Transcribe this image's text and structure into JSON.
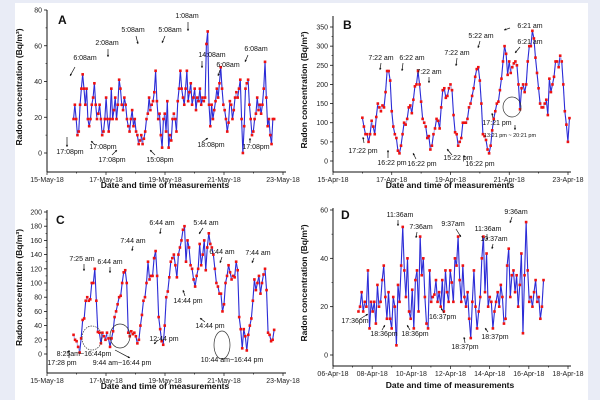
{
  "figure": {
    "background": "#e9ecf6",
    "line_color": "#2b2bd6",
    "line_light_color": "#b7b9f0",
    "marker_color": "#ee1111"
  },
  "chart_data": [
    {
      "panel": "A",
      "type": "line",
      "xlabel": "Date and time of measurements",
      "ylabel": "Radon concentration (Bq/m³)",
      "ylim": [
        -10,
        80
      ],
      "yticks": [
        0,
        20,
        40,
        60,
        80
      ],
      "xlim_days": [
        0,
        8
      ],
      "xticks": [
        {
          "day": 0,
          "label": "15-May-18"
        },
        {
          "day": 2,
          "label": "17-May-18"
        },
        {
          "day": 4,
          "label": "19-May-18"
        },
        {
          "day": 6,
          "label": "21-May-18"
        },
        {
          "day": 8,
          "label": "23-May-18"
        }
      ],
      "x_start_day": 0.9,
      "x_end_day": 7.7,
      "values": [
        19,
        27,
        19,
        10,
        12,
        27,
        36,
        44,
        36,
        27,
        36,
        19,
        15,
        19,
        27,
        31,
        39,
        27,
        19,
        22,
        27,
        19,
        10,
        12,
        19,
        31,
        19,
        12,
        19,
        36,
        19,
        24,
        31,
        19,
        27,
        41,
        36,
        27,
        24,
        31,
        27,
        19,
        15,
        12,
        19,
        24,
        15,
        19,
        12,
        10,
        5,
        7,
        10,
        5,
        8,
        12,
        19,
        22,
        31,
        24,
        27,
        29,
        34,
        46,
        29,
        19,
        22,
        10,
        3,
        19,
        22,
        12,
        29,
        3,
        10,
        7,
        19,
        22,
        19,
        12,
        29,
        36,
        46,
        36,
        31,
        27,
        36,
        46,
        29,
        34,
        39,
        27,
        31,
        36,
        24,
        31,
        29,
        36,
        27,
        31,
        29,
        31,
        61,
        68,
        27,
        15,
        27,
        19,
        24,
        29,
        36,
        31,
        39,
        48,
        36,
        27,
        24,
        19,
        12,
        17,
        29,
        27,
        19,
        24,
        31,
        34,
        31,
        36,
        41,
        19,
        0,
        15,
        36,
        39,
        41,
        27,
        19,
        10,
        12,
        19,
        22,
        31,
        24,
        27,
        22,
        27,
        36,
        51,
        31,
        15,
        19,
        10,
        5,
        19,
        19
      ],
      "annotations": [
        {
          "text": "6:08am",
          "day": 1.5,
          "value": 39,
          "ty": 41
        },
        {
          "text": "2:08am",
          "day": 2.3,
          "value": 41,
          "ty": 45
        },
        {
          "text": "5:08am",
          "day": 3.3,
          "value": 46,
          "ty": 50
        },
        {
          "text": "5:08am",
          "day": 4.3,
          "value": 46,
          "ty": 50
        },
        {
          "text": "1:08am",
          "day": 5.05,
          "value": 68,
          "ty": 72
        },
        {
          "text": "14:08am",
          "day": 5.6,
          "value": 48,
          "ty": 52
        },
        {
          "text": "6:08am",
          "day": 6.25,
          "value": 41,
          "ty": 45
        },
        {
          "text": "6:08am",
          "day": 7.25,
          "value": 51,
          "ty": 55
        },
        {
          "text": "17:08pm",
          "day": 1.0,
          "value": 5,
          "ty": -2
        },
        {
          "text": "17:08pm",
          "day": 1.6,
          "value": 9,
          "ty": 3
        },
        {
          "text": "17:08pm",
          "day": 3.0,
          "value": 5,
          "ty": -3
        },
        {
          "text": "15:08pm",
          "day": 3.9,
          "value": 3,
          "ty": -3
        },
        {
          "text": "18:08pm",
          "day": 5.5,
          "value": 8,
          "ty": 4
        },
        {
          "text": "17:08pm",
          "day": 6.9,
          "value": 9,
          "ty": 3
        }
      ]
    },
    {
      "panel": "B",
      "type": "line",
      "xlabel": "Date and time of measurements",
      "ylabel": "Radon concentration (Bq/m³)",
      "ylim": [
        -20,
        375
      ],
      "yticks": [
        0,
        50,
        100,
        150,
        200,
        250,
        300,
        350
      ],
      "xlim_days": [
        0,
        8
      ],
      "xticks": [
        {
          "day": 0,
          "label": "15-Apr-18"
        },
        {
          "day": 2,
          "label": "17-Apr-18"
        },
        {
          "day": 4,
          "label": "19-Apr-18"
        },
        {
          "day": 6,
          "label": "21-Apr-18"
        },
        {
          "day": 8,
          "label": "23-Apr-18"
        }
      ],
      "x_start_day": 1.0,
      "x_end_day": 8.05,
      "values": [
        113,
        90,
        70,
        70,
        50,
        70,
        105,
        90,
        70,
        115,
        150,
        140,
        130,
        145,
        140,
        180,
        235,
        235,
        210,
        130,
        90,
        70,
        60,
        27,
        20,
        40,
        70,
        100,
        95,
        110,
        140,
        145,
        125,
        160,
        195,
        200,
        235,
        200,
        155,
        110,
        100,
        90,
        60,
        65,
        30,
        40,
        70,
        85,
        110,
        105,
        85,
        140,
        185,
        190,
        165,
        170,
        190,
        200,
        185,
        120,
        75,
        70,
        40,
        50,
        60,
        100,
        100,
        100,
        110,
        140,
        150,
        170,
        190,
        220,
        240,
        245,
        210,
        150,
        70,
        65,
        55,
        30,
        20,
        40,
        80,
        110,
        130,
        150,
        155,
        185,
        215,
        260,
        300,
        280,
        225,
        260,
        230,
        245,
        255,
        260,
        250,
        200,
        135,
        190,
        200,
        180,
        200,
        260,
        300,
        300,
        340,
        320,
        270,
        230,
        190,
        150,
        140,
        140,
        150,
        160,
        120,
        215,
        180,
        200,
        220,
        260,
        260,
        245,
        275,
        260,
        200,
        130,
        95,
        50,
        112
      ]
    },
    {
      "panel": "C",
      "type": "line",
      "xlabel": "Date and time of measurements",
      "ylabel": "Radon concentration (Bq/m³)",
      "ylim": [
        -10,
        200
      ],
      "yticks": [
        0,
        20,
        40,
        60,
        80,
        100,
        120,
        140,
        160,
        180,
        200
      ],
      "xlim_days": [
        0,
        8
      ],
      "xticks": [
        {
          "day": 0,
          "label": "15-May-18"
        },
        {
          "day": 2,
          "label": "17-May-18"
        },
        {
          "day": 4,
          "label": "19-May-18"
        },
        {
          "day": 6,
          "label": "21-May-18"
        },
        {
          "day": 8,
          "label": "23-May-18"
        }
      ],
      "x_start_day": 0.9,
      "x_end_day": 7.7,
      "values": [
        27,
        20,
        18,
        10,
        2,
        22,
        48,
        50,
        75,
        80,
        75,
        77,
        100,
        100,
        120,
        75,
        31,
        30,
        15,
        30,
        25,
        20,
        30,
        22,
        10,
        22,
        32,
        52,
        60,
        70,
        80,
        82,
        100,
        115,
        118,
        100,
        30,
        25,
        32,
        28,
        30,
        25,
        15,
        20,
        40,
        55,
        75,
        80,
        100,
        130,
        105,
        110,
        110,
        135,
        145,
        110,
        52,
        35,
        18,
        13,
        40,
        80,
        88,
        108,
        130,
        135,
        140,
        125,
        108,
        140,
        150,
        160,
        175,
        180,
        130,
        160,
        150,
        125,
        120,
        105,
        95,
        110,
        120,
        155,
        125,
        140,
        160,
        118,
        150,
        170,
        155,
        150,
        140,
        120,
        100,
        95,
        85,
        85,
        60,
        70,
        100,
        110,
        125,
        115,
        105,
        110,
        108,
        130,
        118,
        52,
        35,
        8,
        35,
        25,
        5,
        27,
        40,
        50,
        75,
        105,
        90,
        100,
        110,
        85,
        100,
        112,
        120,
        90,
        30,
        27,
        18,
        20,
        34
      ],
      "circles": [
        {
          "from": "8:25am",
          "to": "16:44pm",
          "day": 2.5,
          "value": 22
        },
        {
          "from": "9:44 am",
          "to": "16:44 pm",
          "day": 3.6,
          "value": 27
        },
        {
          "from": "10:44 am",
          "to": "16:44 pm",
          "day": 6.35,
          "value": 20
        }
      ]
    },
    {
      "panel": "D",
      "type": "line",
      "xlabel": "Date and time of measurements",
      "ylabel": "Radon concentration (Bq/m³)",
      "ylim": [
        -5,
        60
      ],
      "yticks": [
        0,
        20,
        40,
        60
      ],
      "xlim_days": [
        0,
        12
      ],
      "xticks": [
        {
          "day": 0,
          "label": "06-Apr-18"
        },
        {
          "day": 2,
          "label": "08-Apr-18"
        },
        {
          "day": 4,
          "label": "10-Apr-18"
        },
        {
          "day": 6,
          "label": "12-Apr-18"
        },
        {
          "day": 8,
          "label": "14-Apr-18"
        },
        {
          "day": 10,
          "label": "16-Apr-18"
        },
        {
          "day": 12,
          "label": "18-Apr-18"
        }
      ],
      "x_start_day": 1.3,
      "x_end_day": 10.75,
      "values": [
        18,
        20,
        26,
        18,
        22,
        20,
        35,
        11,
        22,
        18,
        22,
        13,
        29,
        20,
        22,
        31,
        37,
        24,
        15,
        26,
        15,
        11,
        24,
        20,
        4,
        29,
        22,
        37,
        53,
        35,
        24,
        40,
        18,
        15,
        27,
        11,
        31,
        35,
        18,
        49,
        33,
        40,
        24,
        13,
        11,
        35,
        22,
        24,
        25,
        31,
        22,
        26,
        20,
        31,
        18,
        35,
        26,
        22,
        35,
        30,
        22,
        40,
        37,
        49,
        31,
        22,
        37,
        24,
        20,
        26,
        15,
        7,
        22,
        35,
        20,
        11,
        18,
        24,
        40,
        49,
        26,
        42,
        20,
        24,
        22,
        11,
        18,
        22,
        26,
        20,
        29,
        24,
        13,
        15,
        37,
        44,
        24,
        33,
        35,
        26,
        33,
        20,
        29,
        42,
        9,
        33,
        55,
        35,
        22,
        24,
        20,
        26,
        31,
        22,
        24,
        15,
        20,
        31
      ]
    }
  ],
  "panels": [
    {
      "letter": "A",
      "yticks": [
        "0",
        "20",
        "40",
        "60",
        "80"
      ],
      "xticks": [
        "15-May-18",
        "17-May-18",
        "19-May-18",
        "21-May-18",
        "23-May-18"
      ],
      "annotations": [
        "6:08am",
        "2:08am",
        "5:08am",
        "5:08am",
        "1:08am",
        "14:08am",
        "6:08am",
        "6:08am",
        "17:08pm",
        "17:08pm",
        "17:08pm",
        "15:08pm",
        "18:08pm",
        "17:08pm"
      ]
    },
    {
      "letter": "B",
      "yticks": [
        "0",
        "50",
        "100",
        "150",
        "200",
        "250",
        "300",
        "350"
      ],
      "xticks": [
        "15-Apr-18",
        "17-Apr-18",
        "19-Apr-18",
        "21-Apr-18",
        "23-Apr-18"
      ],
      "annotations": [
        "7:22 am",
        "6:22 am",
        "7:22 am",
        "7:22 am",
        "5:22 am",
        "6:21 am",
        "6:21 am",
        "17:22 pm",
        "16:22 pm",
        "16:22 pm",
        "15:22 pm",
        "16:22 pm",
        "17:21 pm",
        "13:21 pm ~ 20:21 pm"
      ]
    },
    {
      "letter": "C",
      "yticks": [
        "0",
        "20",
        "40",
        "60",
        "80",
        "100",
        "120",
        "140",
        "160",
        "180",
        "200"
      ],
      "xticks": [
        "15-May-18",
        "17-May-18",
        "19-May-18",
        "21-May-18",
        "23-May-18"
      ],
      "annotations": [
        "7:25 am",
        "6:44 am",
        "7:44 am",
        "6:44 am",
        "5:44 am",
        "6:44 am",
        "7:44 am",
        "14:44 pm",
        "14:44 pm",
        "12:44 pm",
        "17:28 pm",
        "8:25am~16:44pm",
        "9:44 am~16:44 pm",
        "10:44 am~16:44 pm"
      ]
    },
    {
      "letter": "D",
      "yticks": [
        "0",
        "20",
        "40",
        "60"
      ],
      "xticks": [
        "06-Apr-18",
        "08-Apr-18",
        "10-Apr-18",
        "12-Apr-18",
        "14-Apr-18",
        "16-Apr-18",
        "18-Apr-18"
      ],
      "annotations": [
        "11:36am",
        "7:36am",
        "9:37am",
        "11:36am",
        "10:37am",
        "9:36am",
        "17:36pm",
        "18:36pm",
        "18:36pm",
        "16:37pm",
        "18:37pm",
        "18:37pm"
      ]
    }
  ],
  "labels": {
    "xlabel": "Date and time of measurements",
    "ylabel": "Radon concentration (Bq/m³)"
  }
}
